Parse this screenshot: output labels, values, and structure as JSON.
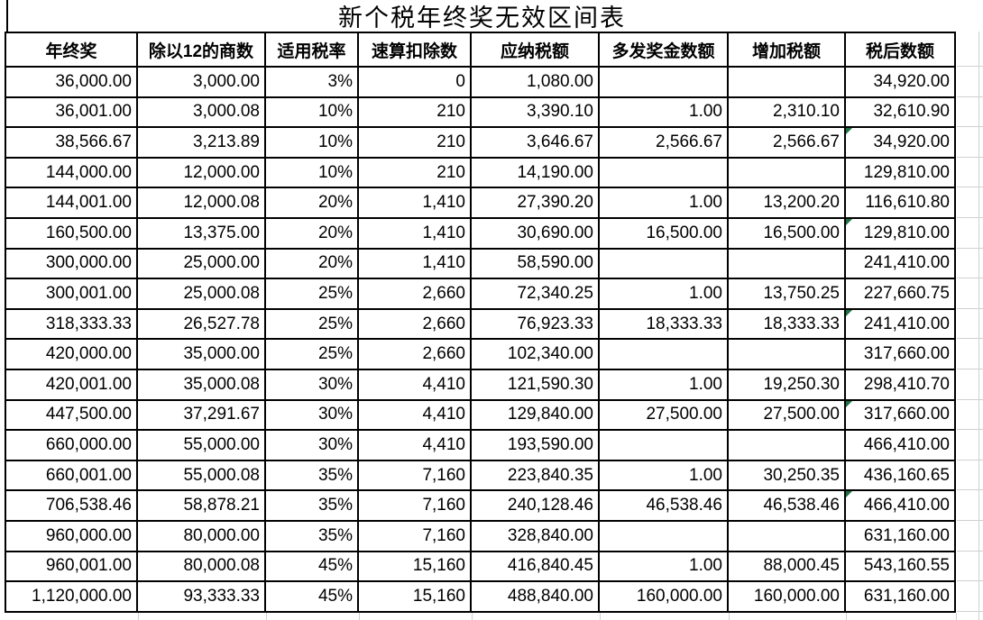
{
  "title": "新个税年终奖无效区间表",
  "table": {
    "headers": [
      "年终奖",
      "除以12的商数",
      "适用税率",
      "速算扣除数",
      "应纳税额",
      "多发奖金数额",
      "增加税额",
      "税后数额"
    ],
    "red_column_index": 6,
    "green_triangle_rows": [
      2,
      5,
      8,
      11,
      14
    ],
    "rows": [
      [
        "36,000.00",
        "3,000.00",
        "3%",
        "0",
        "1,080.00",
        "",
        "",
        "34,920.00"
      ],
      [
        "36,001.00",
        "3,000.08",
        "10%",
        "210",
        "3,390.10",
        "1.00",
        "2,310.10",
        "32,610.90"
      ],
      [
        "38,566.67",
        "3,213.89",
        "10%",
        "210",
        "3,646.67",
        "2,566.67",
        "2,566.67",
        "34,920.00"
      ],
      [
        "144,000.00",
        "12,000.00",
        "10%",
        "210",
        "14,190.00",
        "",
        "",
        "129,810.00"
      ],
      [
        "144,001.00",
        "12,000.08",
        "20%",
        "1,410",
        "27,390.20",
        "1.00",
        "13,200.20",
        "116,610.80"
      ],
      [
        "160,500.00",
        "13,375.00",
        "20%",
        "1,410",
        "30,690.00",
        "16,500.00",
        "16,500.00",
        "129,810.00"
      ],
      [
        "300,000.00",
        "25,000.00",
        "20%",
        "1,410",
        "58,590.00",
        "",
        "",
        "241,410.00"
      ],
      [
        "300,001.00",
        "25,000.08",
        "25%",
        "2,660",
        "72,340.25",
        "1.00",
        "13,750.25",
        "227,660.75"
      ],
      [
        "318,333.33",
        "26,527.78",
        "25%",
        "2,660",
        "76,923.33",
        "18,333.33",
        "18,333.33",
        "241,410.00"
      ],
      [
        "420,000.00",
        "35,000.00",
        "25%",
        "2,660",
        "102,340.00",
        "",
        "",
        "317,660.00"
      ],
      [
        "420,001.00",
        "35,000.08",
        "30%",
        "4,410",
        "121,590.30",
        "1.00",
        "19,250.30",
        "298,410.70"
      ],
      [
        "447,500.00",
        "37,291.67",
        "30%",
        "4,410",
        "129,840.00",
        "27,500.00",
        "27,500.00",
        "317,660.00"
      ],
      [
        "660,000.00",
        "55,000.00",
        "30%",
        "4,410",
        "193,590.00",
        "",
        "",
        "466,410.00"
      ],
      [
        "660,001.00",
        "55,000.08",
        "35%",
        "7,160",
        "223,840.35",
        "1.00",
        "30,250.35",
        "436,160.65"
      ],
      [
        "706,538.46",
        "58,878.21",
        "35%",
        "7,160",
        "240,128.46",
        "46,538.46",
        "46,538.46",
        "466,410.00"
      ],
      [
        "960,000.00",
        "80,000.00",
        "35%",
        "7,160",
        "328,840.00",
        "",
        "",
        "631,160.00"
      ],
      [
        "960,001.00",
        "80,000.08",
        "45%",
        "15,160",
        "416,840.45",
        "1.00",
        "88,000.45",
        "543,160.55"
      ],
      [
        "1,120,000.00",
        "93,333.33",
        "45%",
        "15,160",
        "488,840.00",
        "160,000.00",
        "160,000.00",
        "631,160.00"
      ]
    ]
  },
  "colors": {
    "red_text": "#FF0000",
    "green_indicator": "#1E7145",
    "border": "#000000",
    "gridline": "#D0D0D0",
    "background": "#FFFFFF"
  }
}
